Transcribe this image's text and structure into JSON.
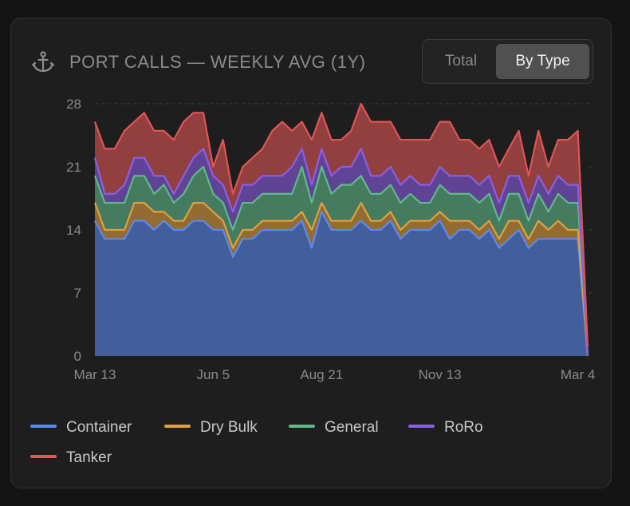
{
  "header": {
    "title": "PORT CALLS — WEEKLY AVG (1Y)",
    "icon": "anchor-icon"
  },
  "toggle": {
    "options": [
      "Total",
      "By Type"
    ],
    "selected": "By Type"
  },
  "colors": {
    "Container": "#5a8af0",
    "Dry Bulk": "#e0a040",
    "General": "#5fb98a",
    "RoRo": "#8a5ee6",
    "Tanker": "#e05555"
  },
  "chart_data": {
    "type": "area",
    "stacked": true,
    "ylim": [
      0,
      28
    ],
    "yticks": [
      0,
      7,
      14,
      21,
      28
    ],
    "xtick_labels": [
      "Mar 13",
      "Jun 5",
      "Aug 21",
      "Nov 13",
      "Mar 4"
    ],
    "xtick_index": [
      0,
      12,
      23,
      35,
      49
    ],
    "grid": "dashed top line only",
    "legend_position": "bottom",
    "x_count": 51,
    "series": [
      {
        "name": "Container",
        "values": [
          15,
          13,
          13,
          13,
          15,
          15,
          14,
          15,
          14,
          14,
          15,
          15,
          14,
          14,
          11,
          13,
          13,
          14,
          14,
          14,
          14,
          15,
          12,
          16,
          14,
          14,
          14,
          15,
          14,
          14,
          15,
          13,
          14,
          14,
          14,
          15,
          13,
          14,
          14,
          13,
          14,
          12,
          13,
          14,
          12,
          13,
          13,
          13,
          13,
          13,
          0
        ]
      },
      {
        "name": "Dry Bulk",
        "values": [
          2,
          1,
          1,
          1,
          2,
          2,
          2,
          1,
          1,
          1,
          2,
          2,
          2,
          1,
          1,
          1,
          1,
          1,
          1,
          1,
          1,
          1,
          2,
          1,
          1,
          1,
          1,
          2,
          1,
          1,
          1,
          1,
          1,
          1,
          1,
          1,
          2,
          1,
          1,
          1,
          1,
          1,
          2,
          1,
          1,
          2,
          1,
          2,
          1,
          1,
          0
        ]
      },
      {
        "name": "General",
        "values": [
          3,
          3,
          3,
          3,
          3,
          3,
          2,
          3,
          2,
          3,
          3,
          4,
          2,
          2,
          2,
          3,
          3,
          3,
          3,
          3,
          3,
          5,
          3,
          4,
          3,
          4,
          4,
          3,
          3,
          3,
          3,
          3,
          3,
          2,
          2,
          3,
          3,
          3,
          3,
          3,
          3,
          2,
          3,
          3,
          2,
          3,
          2,
          3,
          3,
          3,
          0
        ]
      },
      {
        "name": "RoRo",
        "values": [
          2,
          1,
          1,
          2,
          2,
          2,
          2,
          1,
          1,
          2,
          2,
          2,
          2,
          2,
          2,
          2,
          2,
          2,
          2,
          2,
          3,
          2,
          2,
          2,
          2,
          2,
          2,
          3,
          2,
          2,
          2,
          2,
          2,
          2,
          2,
          2,
          2,
          2,
          2,
          2,
          2,
          2,
          2,
          2,
          2,
          2,
          2,
          2,
          2,
          2,
          0
        ]
      },
      {
        "name": "Tanker",
        "values": [
          4,
          5,
          5,
          6,
          4,
          5,
          5,
          5,
          6,
          6,
          5,
          4,
          1,
          5,
          2,
          2,
          3,
          3,
          5,
          6,
          4,
          3,
          5,
          4,
          4,
          3,
          4,
          5,
          6,
          6,
          5,
          5,
          4,
          5,
          5,
          5,
          6,
          4,
          4,
          4,
          4,
          4,
          3,
          5,
          3,
          5,
          3,
          4,
          5,
          6,
          1
        ]
      }
    ]
  }
}
